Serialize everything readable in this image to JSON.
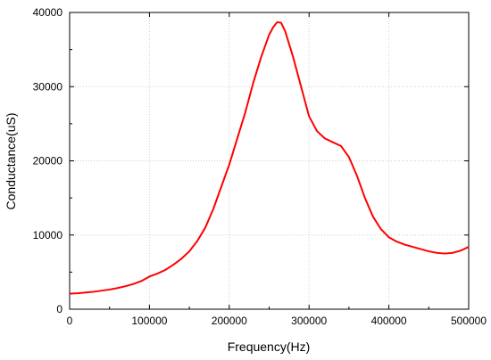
{
  "chart_data": {
    "type": "line",
    "title": "",
    "xlabel": "Frequency(Hz)",
    "ylabel": "Conductance(uS)",
    "xlim": [
      0,
      500000
    ],
    "ylim": [
      0,
      40000
    ],
    "x_ticks": [
      0,
      100000,
      200000,
      300000,
      400000,
      500000
    ],
    "y_ticks": [
      0,
      10000,
      20000,
      30000,
      40000
    ],
    "x_tick_labels": [
      "0",
      "100000",
      "200000",
      "300000",
      "400000",
      "500000"
    ],
    "y_tick_labels": [
      "0",
      "10000",
      "20000",
      "30000",
      "40000"
    ],
    "grid": true,
    "line_color": "#ff0000",
    "series": [
      {
        "x": [
          0,
          10000,
          20000,
          30000,
          40000,
          50000,
          60000,
          70000,
          80000,
          90000,
          100000,
          110000,
          120000,
          130000,
          140000,
          150000,
          160000,
          170000,
          180000,
          190000,
          200000,
          210000,
          220000,
          230000,
          240000,
          250000,
          255000,
          260000,
          265000,
          270000,
          280000,
          290000,
          300000,
          310000,
          320000,
          330000,
          340000,
          350000,
          360000,
          370000,
          380000,
          390000,
          400000,
          410000,
          420000,
          430000,
          440000,
          450000,
          460000,
          470000,
          480000,
          490000,
          500000
        ],
        "y": [
          2100,
          2150,
          2250,
          2350,
          2500,
          2650,
          2850,
          3100,
          3400,
          3800,
          4400,
          4800,
          5300,
          6000,
          6800,
          7800,
          9200,
          11000,
          13500,
          16500,
          19500,
          23000,
          26500,
          30500,
          34000,
          37000,
          38000,
          38700,
          38600,
          37500,
          34000,
          30000,
          26000,
          24000,
          23000,
          22500,
          22000,
          20500,
          18000,
          15000,
          12500,
          10800,
          9700,
          9100,
          8700,
          8400,
          8100,
          7800,
          7600,
          7500,
          7600,
          7900,
          8400
        ]
      }
    ]
  }
}
